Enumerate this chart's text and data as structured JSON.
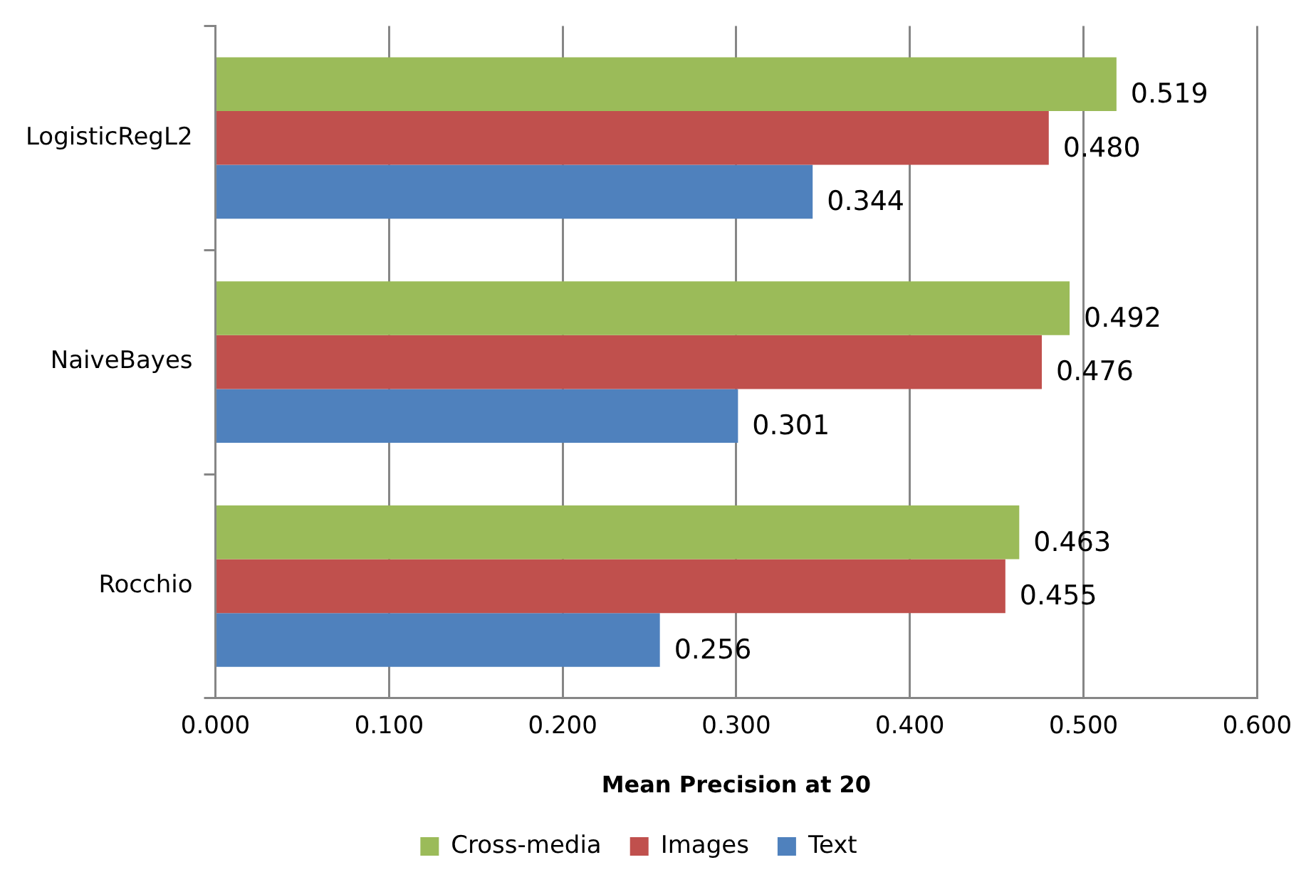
{
  "chart_data": {
    "type": "bar",
    "orientation": "horizontal",
    "xlabel": "Mean Precision at 20",
    "categories": [
      "LogisticRegL2",
      "NaiveBayes",
      "Rocchio"
    ],
    "series": [
      {
        "name": "Cross-media",
        "color": "#9bbb59",
        "values": [
          0.519,
          0.492,
          0.463
        ],
        "value_labels": [
          "0.519",
          "0.492",
          "0.463"
        ]
      },
      {
        "name": "Images",
        "color": "#c0504d",
        "values": [
          0.48,
          0.476,
          0.455
        ],
        "value_labels": [
          "0.480",
          "0.476",
          "0.455"
        ]
      },
      {
        "name": "Text",
        "color": "#4f81bd",
        "values": [
          0.344,
          0.301,
          0.256
        ],
        "value_labels": [
          "0.344",
          "0.301",
          "0.256"
        ]
      }
    ],
    "xlim": [
      0,
      0.6
    ],
    "xticks": [
      {
        "value": 0,
        "label": "0.000"
      },
      {
        "value": 0.1,
        "label": "0.100"
      },
      {
        "value": 0.2,
        "label": "0.200"
      },
      {
        "value": 0.3,
        "label": "0.300"
      },
      {
        "value": 0.4,
        "label": "0.400"
      },
      {
        "value": 0.5,
        "label": "0.500"
      },
      {
        "value": 0.6,
        "label": "0.600"
      }
    ],
    "grid": "x",
    "legend": "bottom"
  }
}
